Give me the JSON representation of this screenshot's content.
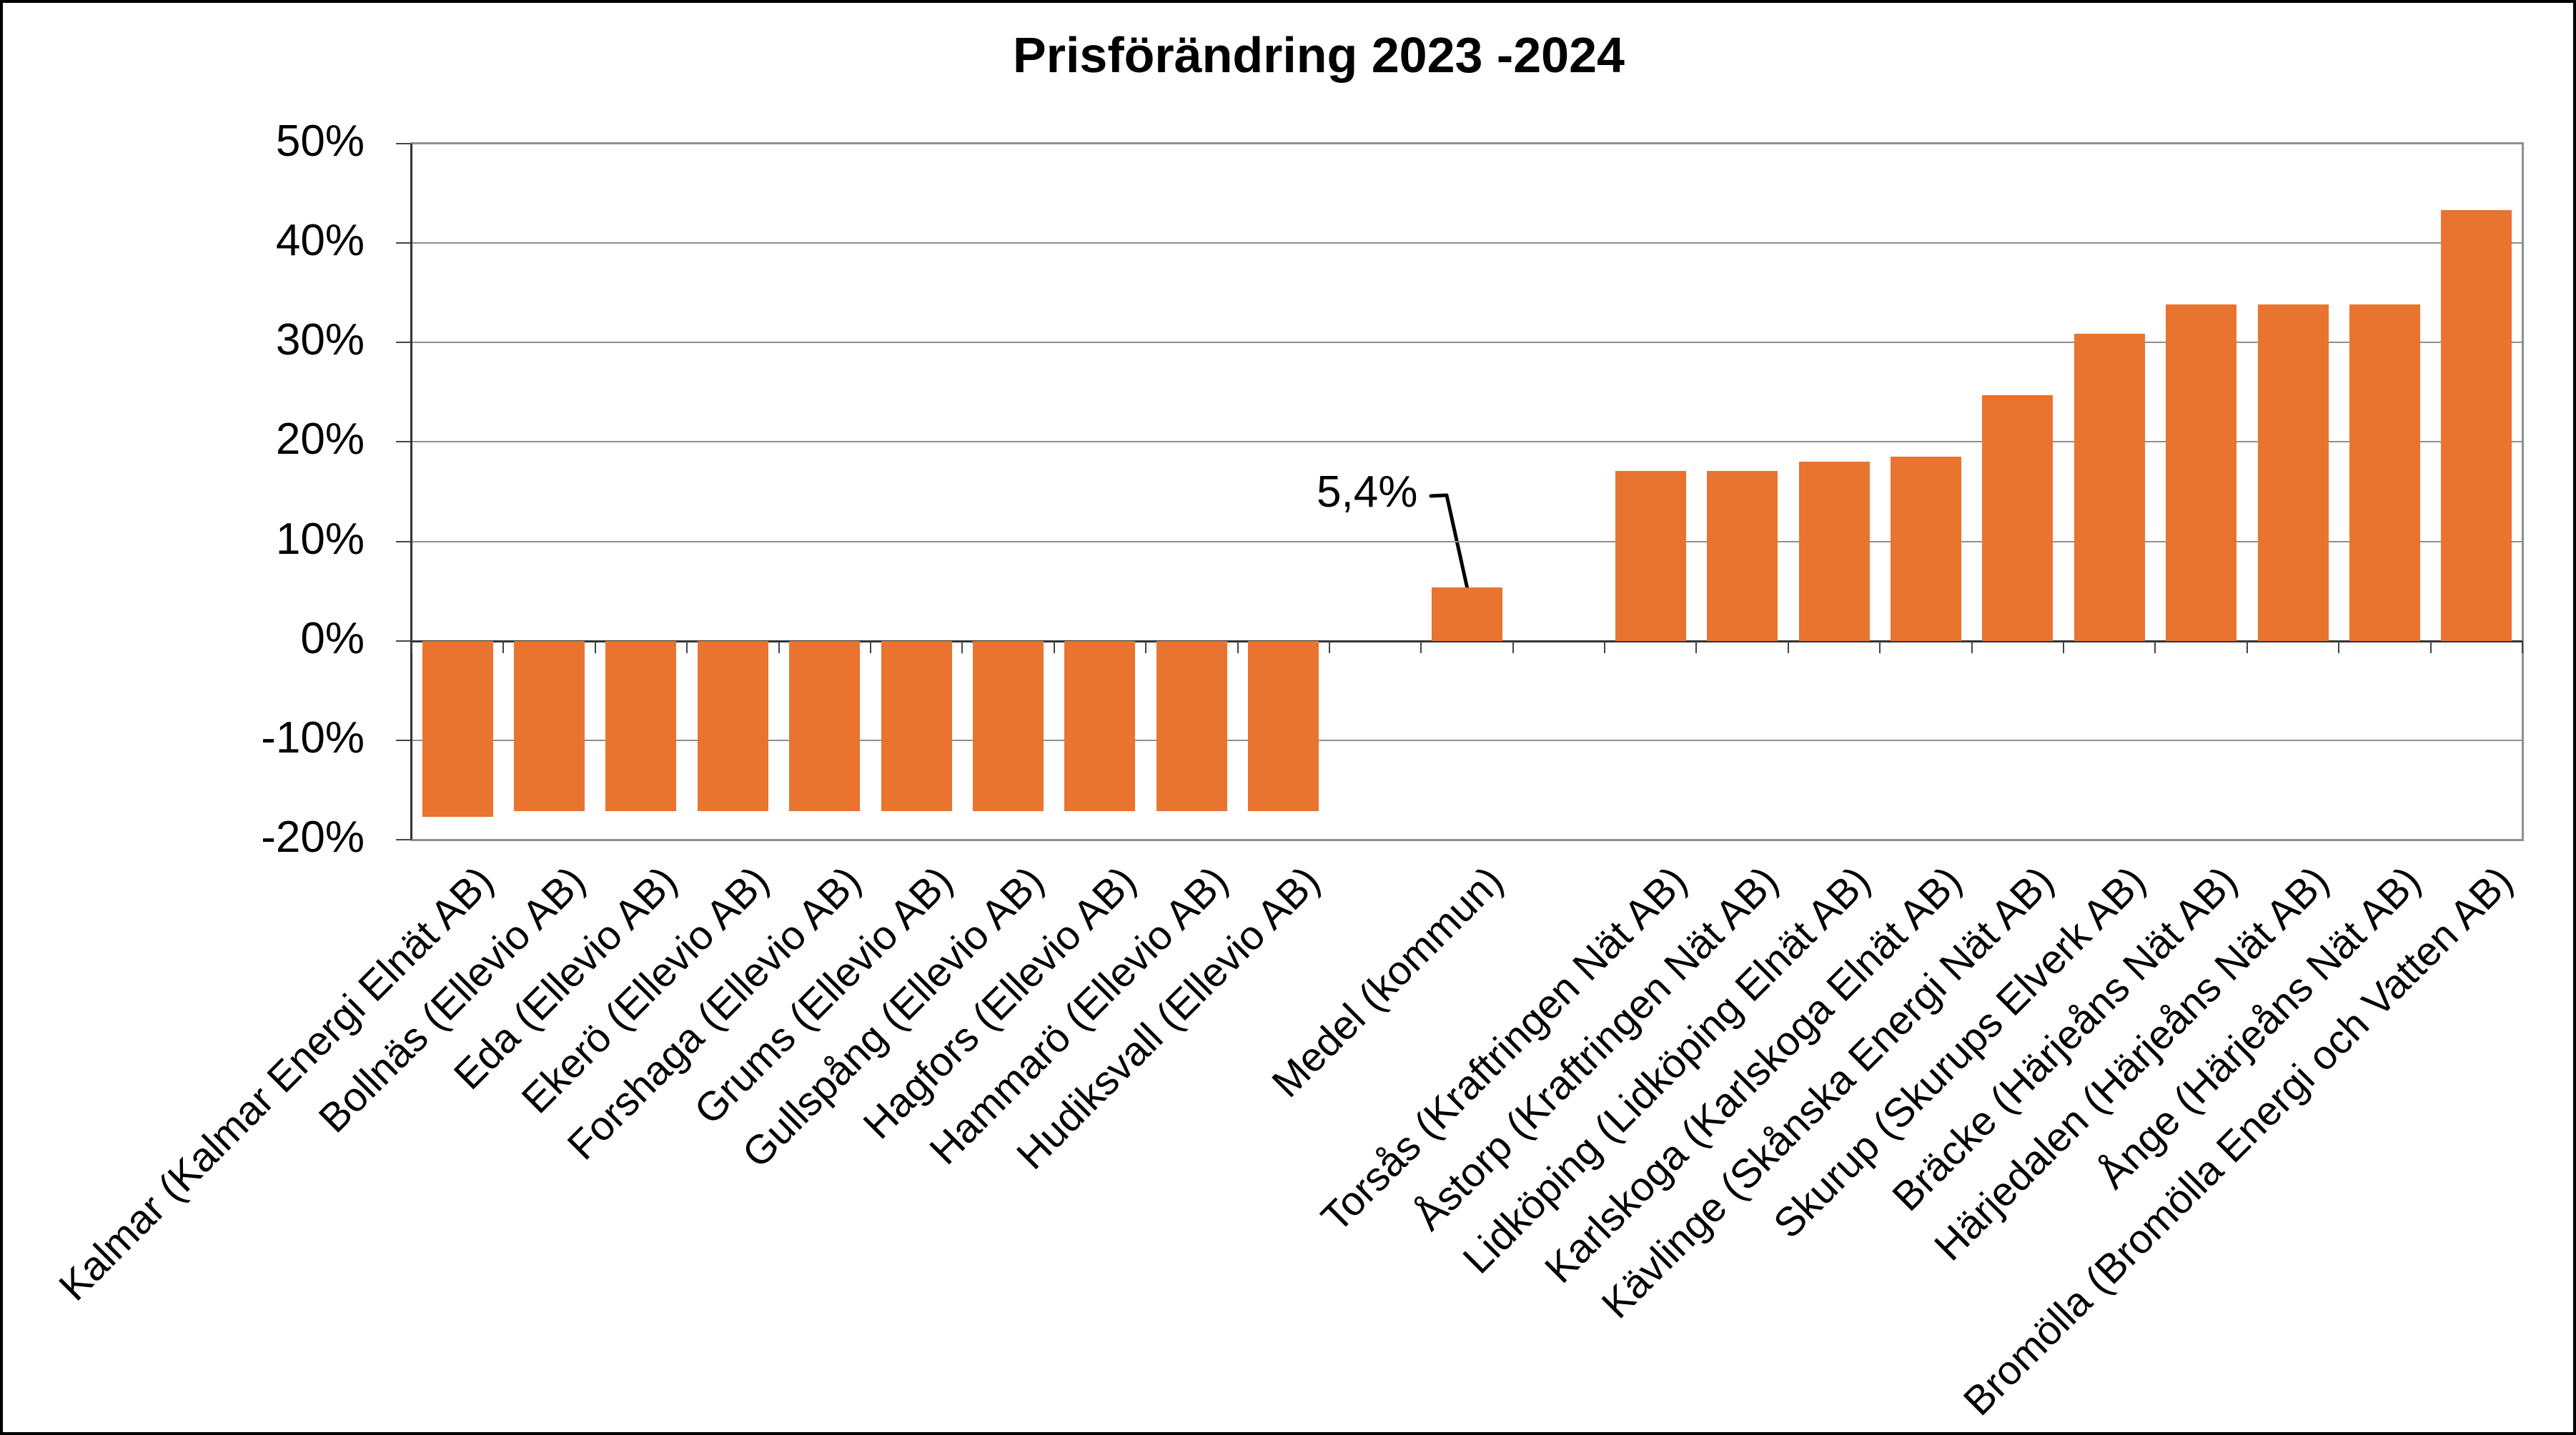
{
  "title": "Prisförändring 2023 -2024",
  "annotation": {
    "label": "5,4%",
    "category": "Medel (kommun)",
    "value": 5.4
  },
  "colors": {
    "bar": "#E8742F",
    "gridline": "#8F8F8F",
    "plot_border": "#8F8F8F",
    "axis_line": "#333333",
    "tick": "#444444",
    "leader_line": "#000000",
    "page_border": "#000000",
    "background": "#FFFFFF",
    "text": "#000000"
  },
  "y_axis": {
    "tick_labels": [
      "50%",
      "40%",
      "30%",
      "20%",
      "10%",
      "0%",
      "-10%",
      "-20%"
    ],
    "min": -20,
    "max": 50,
    "step": 10
  },
  "chart_data": {
    "type": "bar",
    "title": "Prisförändring 2023 -2024",
    "xlabel": "",
    "ylabel": "",
    "unit": "%",
    "ylim": [
      -20,
      50
    ],
    "ytick_step": 10,
    "grid": true,
    "legend": false,
    "total_slots": 23,
    "series": [
      {
        "label": "Kalmar (Kalmar Energi Elnät AB)",
        "value": -17.7,
        "slot": 0
      },
      {
        "label": "Bollnäs (Ellevio AB)",
        "value": -17.1,
        "slot": 1
      },
      {
        "label": "Eda (Ellevio AB)",
        "value": -17.1,
        "slot": 2
      },
      {
        "label": "Ekerö (Ellevio AB)",
        "value": -17.1,
        "slot": 3
      },
      {
        "label": "Forshaga (Ellevio AB)",
        "value": -17.1,
        "slot": 4
      },
      {
        "label": "Grums (Ellevio AB)",
        "value": -17.1,
        "slot": 5
      },
      {
        "label": "Gullspång (Ellevio AB)",
        "value": -17.1,
        "slot": 6
      },
      {
        "label": "Hagfors (Ellevio AB)",
        "value": -17.1,
        "slot": 7
      },
      {
        "label": "Hammarö (Ellevio AB)",
        "value": -17.1,
        "slot": 8
      },
      {
        "label": "Hudiksvall (Ellevio AB)",
        "value": -17.1,
        "slot": 9
      },
      {
        "label": "Medel (kommun)",
        "value": 5.4,
        "slot": 11
      },
      {
        "label": "Torsås (Kraftringen Nät AB)",
        "value": 17.1,
        "slot": 13
      },
      {
        "label": "Åstorp (Kraftringen Nät AB)",
        "value": 17.1,
        "slot": 14
      },
      {
        "label": "Lidköping (Lidköping Elnät AB)",
        "value": 18.0,
        "slot": 15
      },
      {
        "label": "Karlskoga (Karlskoga Elnät AB)",
        "value": 18.5,
        "slot": 16
      },
      {
        "label": "Kävlinge (Skånska Energi Nät AB)",
        "value": 24.7,
        "slot": 17
      },
      {
        "label": "Skurup (Skurups Elverk AB)",
        "value": 30.9,
        "slot": 18
      },
      {
        "label": "Bräcke (Härjeåns Nät AB)",
        "value": 33.8,
        "slot": 19
      },
      {
        "label": "Härjedalen (Härjeåns Nät AB)",
        "value": 33.8,
        "slot": 20
      },
      {
        "label": "Ånge (Härjeåns Nät AB)",
        "value": 33.8,
        "slot": 21
      },
      {
        "label": "Bromölla (Bromölla Energi och Vatten AB)",
        "value": 43.3,
        "slot": 22
      }
    ],
    "annotation": {
      "label": "5,4%",
      "category": "Medel (kommun)",
      "value": 5.4
    }
  }
}
